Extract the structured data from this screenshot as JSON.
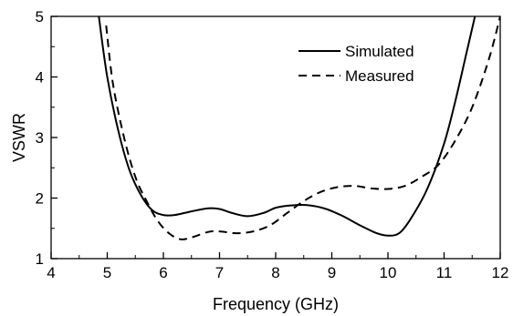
{
  "chart_data": {
    "type": "line",
    "xlabel": "Frequency (GHz)",
    "ylabel": "VSWR",
    "xlim": [
      4,
      12
    ],
    "ylim": [
      1,
      5
    ],
    "xticks": [
      "4",
      "5",
      "6",
      "7",
      "8",
      "9",
      "10",
      "11",
      "12"
    ],
    "yticks": [
      "1",
      "2",
      "3",
      "4",
      "5"
    ],
    "grid": false,
    "legend_position": "top-right",
    "series": [
      {
        "name": "Simulated",
        "style": "solid",
        "color": "#000000",
        "x": [
          4.85,
          5.0,
          5.2,
          5.4,
          5.6,
          5.8,
          6.0,
          6.2,
          6.5,
          6.8,
          7.0,
          7.2,
          7.5,
          7.8,
          8.0,
          8.3,
          8.6,
          8.9,
          9.2,
          9.5,
          9.8,
          10.0,
          10.2,
          10.4,
          10.7,
          11.0,
          11.2,
          11.4,
          11.55
        ],
        "y": [
          5.0,
          4.0,
          3.1,
          2.45,
          2.05,
          1.8,
          1.72,
          1.72,
          1.78,
          1.83,
          1.82,
          1.76,
          1.7,
          1.76,
          1.84,
          1.88,
          1.88,
          1.82,
          1.7,
          1.55,
          1.42,
          1.38,
          1.42,
          1.65,
          2.15,
          2.9,
          3.6,
          4.4,
          5.0
        ]
      },
      {
        "name": "Measured",
        "style": "dashed",
        "color": "#000000",
        "x": [
          4.98,
          5.1,
          5.3,
          5.5,
          5.7,
          5.9,
          6.1,
          6.3,
          6.5,
          6.8,
          7.0,
          7.3,
          7.6,
          7.9,
          8.2,
          8.5,
          8.8,
          9.1,
          9.4,
          9.7,
          10.0,
          10.3,
          10.6,
          10.9,
          11.2,
          11.5,
          11.8,
          12.0
        ],
        "y": [
          4.85,
          3.9,
          3.0,
          2.35,
          1.95,
          1.62,
          1.42,
          1.32,
          1.35,
          1.44,
          1.45,
          1.42,
          1.45,
          1.55,
          1.75,
          1.95,
          2.1,
          2.18,
          2.2,
          2.16,
          2.15,
          2.2,
          2.35,
          2.55,
          2.95,
          3.5,
          4.3,
          5.0
        ]
      }
    ]
  }
}
